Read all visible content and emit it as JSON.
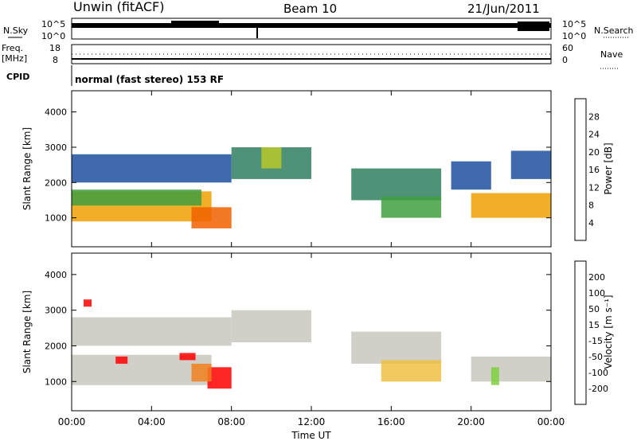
{
  "header": {
    "site": "Unwin (fitACF)",
    "beam": "Beam 10",
    "date": "21/Jun/2011"
  },
  "status_panels": {
    "nsky_label": "N.Sky",
    "nsky_ticks": [
      "10^5",
      "10^0"
    ],
    "nsearch_label": "N.Search",
    "nsearch_ticks": [
      "10^5",
      "10^0"
    ],
    "freq_label_line1": "Freq.",
    "freq_label_line2": "[MHz]",
    "freq_ticks": [
      "18",
      "8"
    ],
    "nave_label": "Nave",
    "nave_ticks": [
      "60",
      "0"
    ],
    "cpid_label": "CPID",
    "cpid_value": "normal (fast stereo) 153 RF"
  },
  "chart_data": [
    {
      "type": "heatmap",
      "name": "power",
      "ylabel": "Slant Range [km]",
      "ylim": [
        180,
        4600
      ],
      "yticks": [
        "1000",
        "2000",
        "3000",
        "4000"
      ],
      "xlim": [
        0,
        24
      ],
      "colorbar_label": "Power [dB]",
      "colorbar_ticks": [
        "4",
        "8",
        "12",
        "16",
        "20",
        "24",
        "28"
      ],
      "colorbar_colors": [
        "#0000ff",
        "#1f4fa0",
        "#2f7f5f",
        "#3f9f3f",
        "#b8c82a",
        "#f0a000",
        "#f06000",
        "#ff0000"
      ],
      "bands": [
        {
          "t0": 0.0,
          "t1": 7.0,
          "r0": 900,
          "r1": 1750,
          "level": 5
        },
        {
          "t0": 0.0,
          "t1": 6.5,
          "r0": 1350,
          "r1": 1800,
          "level": 3
        },
        {
          "t0": 0.0,
          "t1": 8.0,
          "r0": 2000,
          "r1": 2800,
          "level": 1
        },
        {
          "t0": 6.0,
          "t1": 8.0,
          "r0": 700,
          "r1": 1300,
          "level": 6
        },
        {
          "t0": 8.0,
          "t1": 12.0,
          "r0": 2100,
          "r1": 3000,
          "level": 2
        },
        {
          "t0": 9.5,
          "t1": 10.5,
          "r0": 2400,
          "r1": 3000,
          "level": 4
        },
        {
          "t0": 14.0,
          "t1": 18.5,
          "r0": 1500,
          "r1": 2400,
          "level": 2
        },
        {
          "t0": 15.5,
          "t1": 18.5,
          "r0": 1000,
          "r1": 1600,
          "level": 3
        },
        {
          "t0": 19.0,
          "t1": 21.0,
          "r0": 1800,
          "r1": 2600,
          "level": 1
        },
        {
          "t0": 20.0,
          "t1": 24.0,
          "r0": 1000,
          "r1": 1700,
          "level": 5
        },
        {
          "t0": 22.0,
          "t1": 24.0,
          "r0": 2100,
          "r1": 2900,
          "level": 1
        }
      ]
    },
    {
      "type": "heatmap",
      "name": "velocity",
      "ylabel": "Slant Range [km]",
      "ylim": [
        180,
        4600
      ],
      "yticks": [
        "1000",
        "2000",
        "3000",
        "4000"
      ],
      "xlim": [
        0,
        24
      ],
      "xticks": [
        "00:00",
        "04:00",
        "08:00",
        "12:00",
        "16:00",
        "20:00",
        "00:00"
      ],
      "xlabel": "Time UT",
      "colorbar_label": "Velocity [m s⁻¹]",
      "colorbar_ticks": [
        "200",
        "100",
        "50",
        "15",
        "-15",
        "-50",
        "-100",
        "-200"
      ],
      "colorbar_colors": [
        "#2030c0",
        "#2f8f4f",
        "#3fa04f",
        "#7fd040",
        "#c8c8c0",
        "#f0c040",
        "#f08020",
        "#f04010",
        "#ff0000"
      ],
      "bands": [
        {
          "t0": 0.0,
          "t1": 7.0,
          "r0": 900,
          "r1": 1750,
          "level": 4
        },
        {
          "t0": 0.0,
          "t1": 8.0,
          "r0": 2000,
          "r1": 2800,
          "level": 4
        },
        {
          "t0": 6.8,
          "t1": 8.0,
          "r0": 800,
          "r1": 1400,
          "level": 8
        },
        {
          "t0": 6.0,
          "t1": 7.0,
          "r0": 1000,
          "r1": 1500,
          "level": 6
        },
        {
          "t0": 8.0,
          "t1": 12.0,
          "r0": 2100,
          "r1": 3000,
          "level": 4
        },
        {
          "t0": 14.0,
          "t1": 18.5,
          "r0": 1500,
          "r1": 2400,
          "level": 4
        },
        {
          "t0": 15.5,
          "t1": 18.5,
          "r0": 1000,
          "r1": 1600,
          "level": 5
        },
        {
          "t0": 20.0,
          "t1": 24.0,
          "r0": 1000,
          "r1": 1700,
          "level": 4
        },
        {
          "t0": 21.0,
          "t1": 21.4,
          "r0": 900,
          "r1": 1400,
          "level": 3
        },
        {
          "t0": 2.2,
          "t1": 2.8,
          "r0": 1500,
          "r1": 1700,
          "level": 8
        },
        {
          "t0": 5.4,
          "t1": 6.2,
          "r0": 1600,
          "r1": 1800,
          "level": 8
        },
        {
          "t0": 0.6,
          "t1": 1.0,
          "r0": 3100,
          "r1": 3300,
          "level": 8
        }
      ]
    }
  ]
}
